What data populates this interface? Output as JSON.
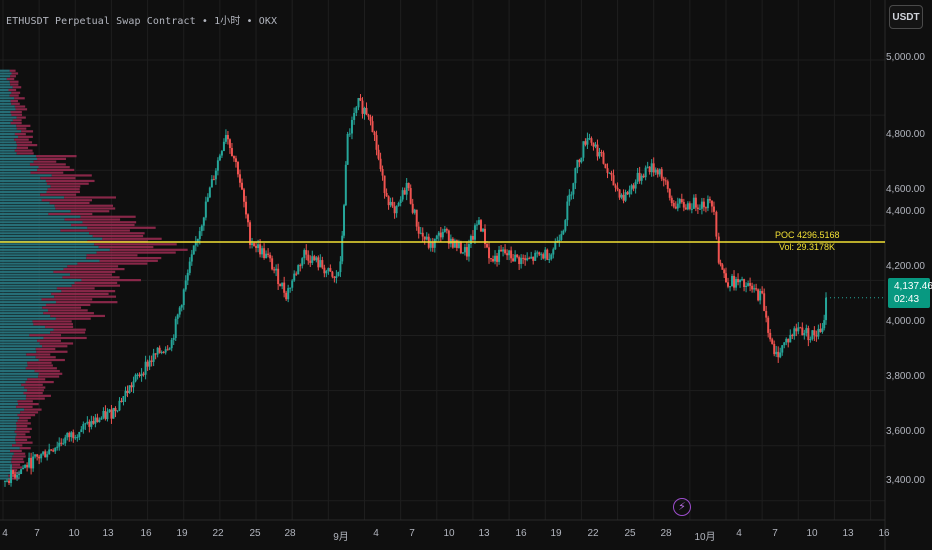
{
  "header": {
    "title": "ETHUSDT Perpetual Swap Contract • 1小时 • OKX"
  },
  "price_scale": {
    "currency_button": "USDT",
    "labels": [
      "5,000.00",
      "4,800.00",
      "4,600.00",
      "4,400.00",
      "4,200.00",
      "4,000.00",
      "3,800.00",
      "3,600.00",
      "3,400.00"
    ],
    "current_price": "4,137.46",
    "countdown": "02:43"
  },
  "time_scale": {
    "labels": [
      "4",
      "7",
      "10",
      "13",
      "16",
      "19",
      "22",
      "25",
      "28",
      "9月",
      "4",
      "7",
      "10",
      "13",
      "16",
      "19",
      "22",
      "25",
      "28",
      "10月",
      "4",
      "7",
      "10",
      "13",
      "16"
    ]
  },
  "poc": {
    "label": "POC 4296.5168",
    "volume": "Vol: 29.3178K"
  },
  "colors": {
    "up": "#26a69a",
    "down": "#ef5350",
    "poc_line": "#f2e035",
    "profile_up": "#2a7f8a",
    "profile_down": "#9e2b52",
    "background": "#0f0f0f",
    "grid": "#1e1e1e"
  },
  "icons": {
    "event_marker": "lightning-icon"
  },
  "chart_data": {
    "type": "candlestick",
    "symbol": "ETHUSDT",
    "interval": "1小时",
    "exchange": "OKX",
    "ylim": [
      3400,
      5050
    ],
    "close_path": [
      [
        0,
        3470
      ],
      [
        3,
        3560
      ],
      [
        6,
        3650
      ],
      [
        9,
        3720
      ],
      [
        12,
        3900
      ],
      [
        14,
        3980
      ],
      [
        15.5,
        4250
      ],
      [
        17,
        4500
      ],
      [
        18.5,
        4740
      ],
      [
        19.5,
        4600
      ],
      [
        20.5,
        4350
      ],
      [
        22,
        4280
      ],
      [
        23.5,
        4150
      ],
      [
        25,
        4300
      ],
      [
        26.5,
        4250
      ],
      [
        27.5,
        4200
      ],
      [
        28,
        4250
      ],
      [
        28.6,
        4720
      ],
      [
        29.5,
        4840
      ],
      [
        30.5,
        4800
      ],
      [
        31.5,
        4560
      ],
      [
        32.5,
        4430
      ],
      [
        33.5,
        4550
      ],
      [
        34.5,
        4380
      ],
      [
        35.5,
        4320
      ],
      [
        36.5,
        4380
      ],
      [
        37.5,
        4330
      ],
      [
        38.5,
        4300
      ],
      [
        39.5,
        4420
      ],
      [
        40.5,
        4270
      ],
      [
        41.5,
        4300
      ],
      [
        42.5,
        4280
      ],
      [
        43.5,
        4270
      ],
      [
        44.5,
        4290
      ],
      [
        45.5,
        4300
      ],
      [
        46.5,
        4400
      ],
      [
        47.5,
        4600
      ],
      [
        48.5,
        4730
      ],
      [
        49.5,
        4660
      ],
      [
        50.5,
        4560
      ],
      [
        51.5,
        4500
      ],
      [
        52.5,
        4560
      ],
      [
        53.5,
        4610
      ],
      [
        54.5,
        4600
      ],
      [
        55.5,
        4480
      ],
      [
        56.5,
        4470
      ],
      [
        57.5,
        4480
      ],
      [
        58.5,
        4480
      ],
      [
        59,
        4470
      ],
      [
        59.4,
        4280
      ],
      [
        60,
        4200
      ],
      [
        61,
        4190
      ],
      [
        62,
        4170
      ],
      [
        63,
        4140
      ],
      [
        64,
        3920
      ],
      [
        65,
        3980
      ],
      [
        66,
        4030
      ],
      [
        67,
        4000
      ],
      [
        68,
        4010
      ],
      [
        68.3,
        4137
      ]
    ]
  }
}
